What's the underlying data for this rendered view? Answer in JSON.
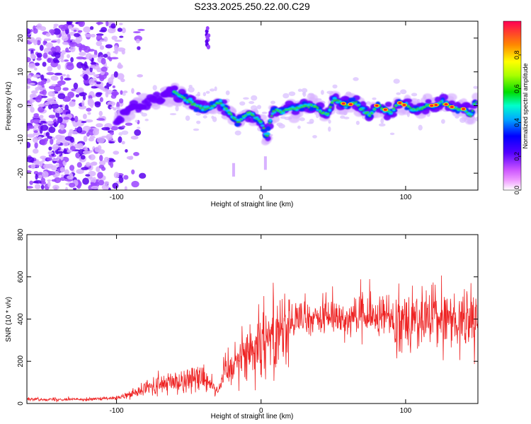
{
  "title": "S233.2025.250.22.00.C29",
  "chart_data": [
    {
      "type": "heatmap",
      "name": "spectrogram",
      "xlabel": "Height of straight line (km)",
      "ylabel": "Frequency (Hz)",
      "xlim": [
        -162,
        150
      ],
      "ylim": [
        -25,
        25
      ],
      "x_ticks": [
        -100,
        0,
        100
      ],
      "y_ticks": [
        -20,
        -10,
        0,
        10,
        20
      ],
      "colorbar": {
        "label": "Normalized spectral amplitude",
        "range": [
          0,
          1
        ],
        "ticks": [
          0.0,
          0.2,
          0.4,
          0.6,
          0.8
        ]
      },
      "ridge": {
        "x": [
          -162,
          -130,
          -110,
          -100,
          -90,
          -80,
          -70,
          -60,
          -52,
          -45,
          -38,
          -32,
          -28,
          -24,
          -20,
          -16,
          -12,
          -8,
          -5,
          -2,
          0,
          2,
          4,
          6,
          8,
          10,
          14,
          18,
          24,
          30,
          36,
          42,
          46,
          50,
          55,
          60,
          65,
          70,
          75,
          80,
          85,
          90,
          95,
          100,
          105,
          110,
          115,
          120,
          125,
          130,
          135,
          140,
          145,
          148
        ],
        "y": [
          -8,
          -11,
          -7,
          -4,
          -1,
          1,
          2,
          4,
          2,
          0,
          -1,
          0,
          1,
          -1,
          -3,
          -5,
          -3,
          -2,
          -3,
          -4,
          -5,
          -7,
          -10,
          -5,
          -2,
          -1,
          -2,
          -1,
          -1,
          0,
          0,
          -2,
          -3,
          2,
          1,
          0,
          1,
          -1,
          -3,
          0,
          -1,
          -2,
          1,
          0,
          -1,
          -1,
          0,
          0,
          1,
          0,
          -1,
          -1,
          -3,
          1
        ]
      },
      "artifact": {
        "x": -37,
        "y_range": [
          16,
          23
        ]
      }
    },
    {
      "type": "line",
      "name": "snr",
      "series": [
        {
          "name": "SNR",
          "color": "#ee2222"
        }
      ],
      "xlabel": "Height of straight line (km)",
      "ylabel": "SNR (10 * v/v)",
      "xlim": [
        -162,
        150
      ],
      "ylim": [
        0,
        800
      ],
      "x_ticks": [
        -100,
        0,
        100
      ],
      "y_ticks": [
        0,
        200,
        400,
        600,
        800
      ],
      "envelope": {
        "x": [
          -162,
          -120,
          -100,
          -90,
          -80,
          -70,
          -60,
          -50,
          -40,
          -35,
          -30,
          -25,
          -20,
          -15,
          -10,
          -5,
          0,
          10,
          20,
          30,
          40,
          50,
          60,
          70,
          80,
          90,
          100,
          110,
          120,
          130,
          140,
          150
        ],
        "y": [
          20,
          20,
          25,
          40,
          70,
          90,
          100,
          115,
          130,
          100,
          60,
          150,
          200,
          220,
          240,
          270,
          310,
          350,
          380,
          400,
          405,
          410,
          410,
          405,
          410,
          410,
          400,
          405,
          410,
          400,
          390,
          380
        ]
      }
    }
  ]
}
